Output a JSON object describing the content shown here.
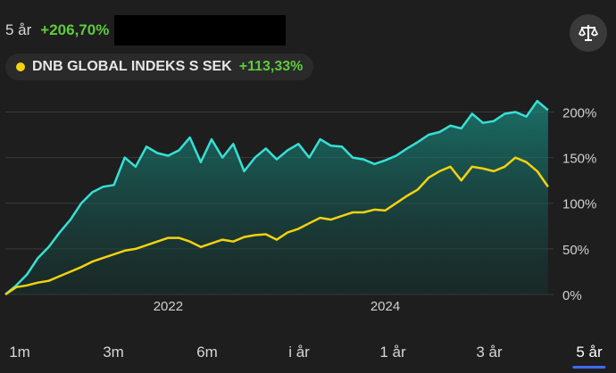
{
  "header": {
    "period": "5 år",
    "gain": "+206,70%"
  },
  "fund": {
    "name": "DNB GLOBAL INDEKS S SEK",
    "gain": "+113,33%",
    "dot_color": "#f5d20e"
  },
  "icons": {
    "compare": "scale-icon"
  },
  "colors": {
    "main_series": "#37e0d6",
    "fund_series": "#f5d20e",
    "positive": "#5ecb3e",
    "active_range": "#3d6bff"
  },
  "ranges": [
    {
      "label": "1m"
    },
    {
      "label": "3m"
    },
    {
      "label": "6m"
    },
    {
      "label": "i år"
    },
    {
      "label": "1 år"
    },
    {
      "label": "3 år"
    },
    {
      "label": "5 år",
      "active": true
    }
  ],
  "chart_data": {
    "type": "area",
    "title": "",
    "xlabel": "",
    "ylabel": "",
    "x_ticks": [
      2022,
      2024
    ],
    "y_ticks": [
      "0%",
      "50%",
      "100%",
      "150%",
      "200%"
    ],
    "ylim": [
      0,
      220
    ],
    "xlim": [
      2020.5,
      2025.55
    ],
    "grid": true,
    "series": [
      {
        "name": "",
        "x": [
          2020.5,
          2020.6,
          2020.7,
          2020.8,
          2020.9,
          2021.0,
          2021.1,
          2021.2,
          2021.3,
          2021.4,
          2021.5,
          2021.6,
          2021.7,
          2021.8,
          2021.9,
          2022.0,
          2022.1,
          2022.2,
          2022.3,
          2022.4,
          2022.5,
          2022.6,
          2022.7,
          2022.8,
          2022.9,
          2023.0,
          2023.1,
          2023.2,
          2023.3,
          2023.4,
          2023.5,
          2023.6,
          2023.7,
          2023.8,
          2023.9,
          2024.0,
          2024.1,
          2024.2,
          2024.3,
          2024.4,
          2024.5,
          2024.6,
          2024.7,
          2024.8,
          2024.9,
          2025.0,
          2025.1,
          2025.2,
          2025.3,
          2025.4,
          2025.5
        ],
        "values": [
          0,
          10,
          22,
          40,
          52,
          68,
          82,
          100,
          112,
          118,
          120,
          150,
          140,
          162,
          155,
          152,
          158,
          172,
          145,
          170,
          150,
          165,
          135,
          150,
          160,
          148,
          158,
          165,
          150,
          170,
          163,
          162,
          150,
          148,
          143,
          147,
          152,
          160,
          167,
          175,
          178,
          185,
          182,
          198,
          188,
          190,
          198,
          200,
          195,
          212,
          202
        ]
      },
      {
        "name": "DNB GLOBAL INDEKS S SEK",
        "x": [
          2020.5,
          2020.6,
          2020.7,
          2020.8,
          2020.9,
          2021.0,
          2021.1,
          2021.2,
          2021.3,
          2021.4,
          2021.5,
          2021.6,
          2021.7,
          2021.8,
          2021.9,
          2022.0,
          2022.1,
          2022.2,
          2022.3,
          2022.4,
          2022.5,
          2022.6,
          2022.7,
          2022.8,
          2022.9,
          2023.0,
          2023.1,
          2023.2,
          2023.3,
          2023.4,
          2023.5,
          2023.6,
          2023.7,
          2023.8,
          2023.9,
          2024.0,
          2024.1,
          2024.2,
          2024.3,
          2024.4,
          2024.5,
          2024.6,
          2024.7,
          2024.8,
          2024.9,
          2025.0,
          2025.1,
          2025.2,
          2025.3,
          2025.4,
          2025.5
        ],
        "values": [
          0,
          8,
          10,
          13,
          15,
          20,
          25,
          30,
          36,
          40,
          44,
          48,
          50,
          54,
          58,
          62,
          62,
          58,
          52,
          56,
          60,
          58,
          63,
          65,
          66,
          60,
          68,
          72,
          78,
          84,
          82,
          86,
          90,
          90,
          93,
          92,
          100,
          108,
          115,
          128,
          135,
          140,
          125,
          140,
          138,
          135,
          140,
          150,
          145,
          135,
          118
        ]
      }
    ]
  }
}
